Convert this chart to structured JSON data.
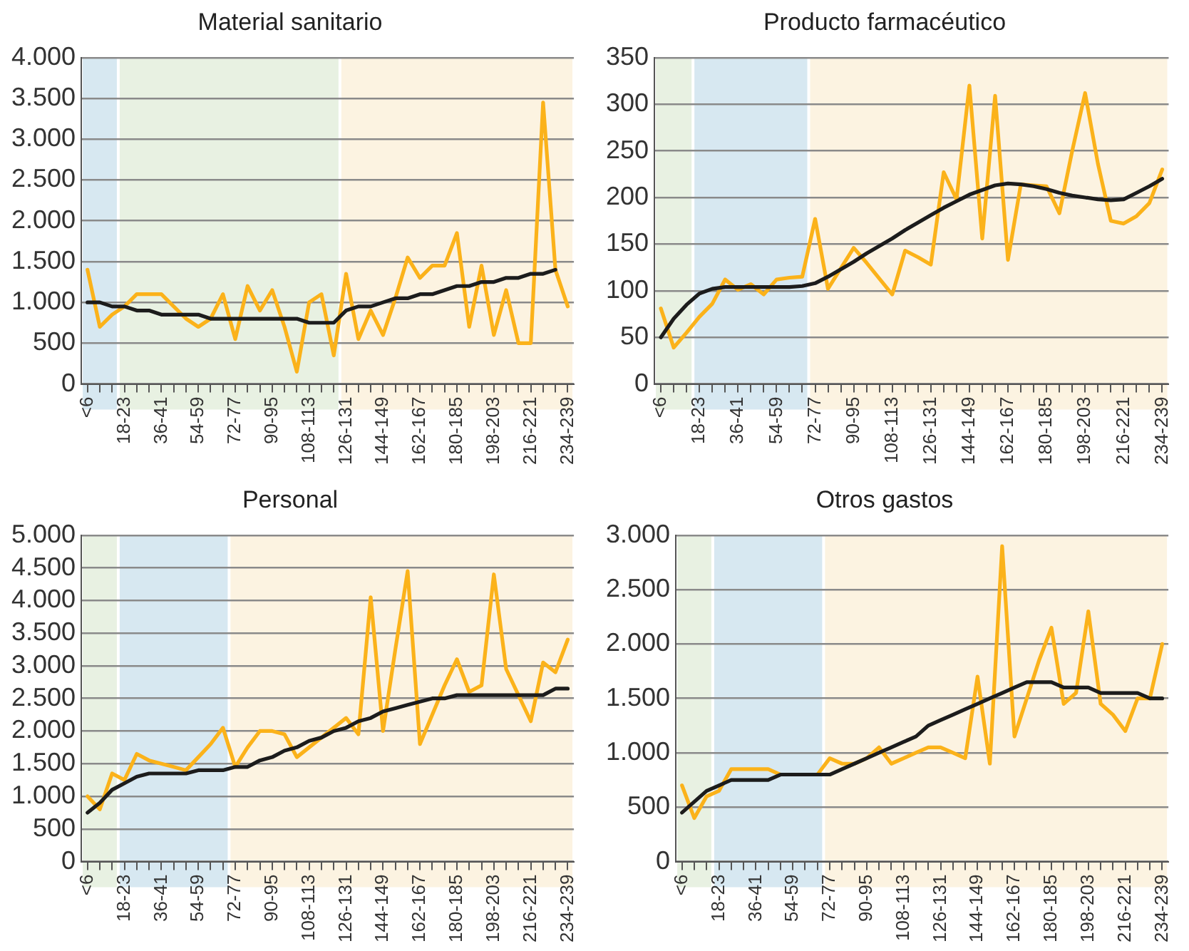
{
  "chart_data": [
    {
      "type": "line",
      "title": "Material sanitario",
      "categories": [
        "<6",
        null,
        null,
        "18-23",
        null,
        null,
        "36-41",
        null,
        null,
        "54-59",
        null,
        null,
        "72-77",
        null,
        null,
        "90-95",
        null,
        null,
        "108-113",
        null,
        null,
        "126-131",
        null,
        null,
        "144-149",
        null,
        null,
        "162-167",
        null,
        null,
        "180-185",
        null,
        null,
        "198-203",
        null,
        null,
        "216-221",
        null,
        null,
        "234-239"
      ],
      "ylim": [
        0,
        4000
      ],
      "yticks": [
        0,
        {
          "value": 500,
          "label": "500"
        },
        {
          "value": 1000,
          "label": "1.000"
        },
        {
          "value": 1500,
          "label": "1.500"
        },
        {
          "value": 2000,
          "label": "2.000"
        },
        {
          "value": 2500,
          "label": "2.500"
        },
        {
          "value": 3000,
          "label": "3.000"
        },
        {
          "value": 3500,
          "label": "3.500"
        },
        {
          "value": 4000,
          "label": "4.000"
        }
      ],
      "grid": "y",
      "marker": "none",
      "bands": [
        {
          "axis": "x",
          "from": "<6",
          "to": "18-23",
          "color": "#d7e8f1"
        },
        {
          "axis": "x",
          "from": "18-23",
          "to": "126-131",
          "color": "#e8f1e2"
        },
        {
          "axis": "x",
          "from": "126-131",
          "to": "234-239",
          "color": "#fcf3e1"
        }
      ],
      "series": [
        {
          "color": "#fbb21a",
          "values": [
            1400,
            700,
            850,
            950,
            1100,
            1100,
            1100,
            950,
            800,
            700,
            800,
            1100,
            550,
            1200,
            900,
            1150,
            700,
            150,
            1000,
            1100,
            350,
            1350,
            550,
            900,
            600,
            1050,
            1550,
            1300,
            1450,
            1450,
            1850,
            700,
            1450,
            600,
            1150,
            500,
            500,
            3450,
            1400,
            950
          ]
        },
        {
          "color": "#1c1c1c",
          "values": [
            1000,
            1000,
            950,
            950,
            900,
            900,
            850,
            850,
            850,
            850,
            800,
            800,
            800,
            800,
            800,
            800,
            800,
            800,
            750,
            750,
            750,
            900,
            950,
            950,
            1000,
            1050,
            1050,
            1100,
            1100,
            1150,
            1200,
            1200,
            1250,
            1250,
            1300,
            1300,
            1350,
            1350,
            1400,
            null
          ]
        }
      ]
    },
    {
      "type": "line",
      "title": "Producto farmacéutico",
      "categories": [
        "<6",
        null,
        null,
        "18-23",
        null,
        null,
        "36-41",
        null,
        null,
        "54-59",
        null,
        null,
        "72-77",
        null,
        null,
        "90-95",
        null,
        null,
        "108-113",
        null,
        null,
        "126-131",
        null,
        null,
        "144-149",
        null,
        null,
        "162-167",
        null,
        null,
        "180-185",
        null,
        null,
        "198-203",
        null,
        null,
        "216-221",
        null,
        null,
        "234-239"
      ],
      "ylim": [
        0,
        350
      ],
      "yticks": [
        0,
        50,
        100,
        150,
        200,
        250,
        300,
        350
      ],
      "grid": "y",
      "marker": "none",
      "bands": [
        {
          "axis": "x",
          "from": "<6",
          "to": "18-23",
          "color": "#e8f1e2"
        },
        {
          "axis": "x",
          "from": "18-23",
          "to": "72-77",
          "color": "#d7e8f1"
        },
        {
          "axis": "x",
          "from": "72-77",
          "to": "234-239",
          "color": "#fcf3e1"
        }
      ],
      "series": [
        {
          "color": "#fbb21a",
          "values": [
            81,
            39,
            55,
            72,
            86,
            112,
            101,
            107,
            96,
            112,
            114,
            115,
            177,
            102,
            124,
            146,
            130,
            113,
            96,
            143,
            136,
            128,
            227,
            198,
            320,
            156,
            309,
            133,
            214,
            213,
            212,
            183,
            250,
            312,
            236,
            175,
            172,
            180,
            194,
            230
          ]
        },
        {
          "color": "#1c1c1c",
          "values": [
            50,
            70,
            85,
            97,
            102,
            104,
            104,
            104,
            104,
            104,
            104,
            105,
            108,
            115,
            123,
            131,
            140,
            148,
            156,
            165,
            173,
            181,
            189,
            196,
            203,
            208,
            213,
            215,
            214,
            212,
            209,
            205,
            202,
            200,
            198,
            197,
            198,
            205,
            212,
            220
          ]
        }
      ]
    },
    {
      "type": "line",
      "title": "Personal",
      "categories": [
        "<6",
        null,
        null,
        "18-23",
        null,
        null,
        "36-41",
        null,
        null,
        "54-59",
        null,
        null,
        "72-77",
        null,
        null,
        "90-95",
        null,
        null,
        "108-113",
        null,
        null,
        "126-131",
        null,
        null,
        "144-149",
        null,
        null,
        "162-167",
        null,
        null,
        "180-185",
        null,
        null,
        "198-203",
        null,
        null,
        "216-221",
        null,
        null,
        "234-239"
      ],
      "ylim": [
        0,
        5000
      ],
      "yticks": [
        0,
        {
          "value": 500,
          "label": "500"
        },
        {
          "value": 1000,
          "label": "1.000"
        },
        {
          "value": 1500,
          "label": "1.500"
        },
        {
          "value": 2000,
          "label": "2.000"
        },
        {
          "value": 2500,
          "label": "2.500"
        },
        {
          "value": 3000,
          "label": "3.000"
        },
        {
          "value": 3500,
          "label": "3.500"
        },
        {
          "value": 4000,
          "label": "4.000"
        },
        {
          "value": 4500,
          "label": "4.500"
        },
        {
          "value": 5000,
          "label": "5.000"
        }
      ],
      "grid": "y",
      "marker": "none",
      "bands": [
        {
          "axis": "x",
          "from": "<6",
          "to": "18-23",
          "color": "#e8f1e2"
        },
        {
          "axis": "x",
          "from": "18-23",
          "to": "72-77",
          "color": "#d7e8f1"
        },
        {
          "axis": "x",
          "from": "72-77",
          "to": "234-239",
          "color": "#fcf3e1"
        }
      ],
      "series": [
        {
          "color": "#fbb21a",
          "values": [
            1000,
            800,
            1350,
            1250,
            1650,
            1550,
            1500,
            1450,
            1400,
            1600,
            1800,
            2050,
            1450,
            1750,
            2000,
            2000,
            1950,
            1600,
            1750,
            1900,
            2050,
            2200,
            1950,
            4050,
            2000,
            3250,
            4450,
            1800,
            2250,
            2700,
            3100,
            2600,
            2700,
            4400,
            2950,
            2550,
            2150,
            3050,
            2900,
            3400
          ]
        },
        {
          "color": "#1c1c1c",
          "values": [
            750,
            900,
            1100,
            1200,
            1300,
            1350,
            1350,
            1350,
            1350,
            1400,
            1400,
            1400,
            1450,
            1450,
            1550,
            1600,
            1700,
            1750,
            1850,
            1900,
            2000,
            2050,
            2150,
            2200,
            2300,
            2350,
            2400,
            2450,
            2500,
            2500,
            2550,
            2550,
            2550,
            2550,
            2550,
            2550,
            2550,
            2550,
            2650,
            2650
          ]
        }
      ]
    },
    {
      "type": "line",
      "title": "Otros gastos",
      "categories": [
        "<6",
        null,
        null,
        "18-23",
        null,
        null,
        "36-41",
        null,
        null,
        "54-59",
        null,
        null,
        "72-77",
        null,
        null,
        "90-95",
        null,
        null,
        "108-113",
        null,
        null,
        "126-131",
        null,
        null,
        "144-149",
        null,
        null,
        "162-167",
        null,
        null,
        "180-185",
        null,
        null,
        "198-203",
        null,
        null,
        "216-221",
        null,
        null,
        "234-239"
      ],
      "ylim": [
        0,
        3000
      ],
      "yticks": [
        0,
        {
          "value": 500,
          "label": "500"
        },
        {
          "value": 1000,
          "label": "1.000"
        },
        {
          "value": 1500,
          "label": "1.500"
        },
        {
          "value": 2000,
          "label": "2.000"
        },
        {
          "value": 2500,
          "label": "2.500"
        },
        {
          "value": 3000,
          "label": "3.000"
        }
      ],
      "grid": "y",
      "marker": "none",
      "bands": [
        {
          "axis": "x",
          "from": "<6",
          "to": "18-23",
          "color": "#e8f1e2"
        },
        {
          "axis": "x",
          "from": "18-23",
          "to": "72-77",
          "color": "#d7e8f1"
        },
        {
          "axis": "x",
          "from": "72-77",
          "to": "234-239",
          "color": "#fcf3e1"
        }
      ],
      "series": [
        {
          "color": "#fbb21a",
          "values": [
            700,
            400,
            600,
            650,
            850,
            850,
            850,
            850,
            800,
            800,
            800,
            800,
            950,
            900,
            900,
            950,
            1050,
            900,
            950,
            1000,
            1050,
            1050,
            1000,
            950,
            1700,
            900,
            2900,
            1150,
            1500,
            1850,
            2150,
            1450,
            1550,
            2300,
            1450,
            1350,
            1200,
            1500,
            1500,
            2000
          ]
        },
        {
          "color": "#1c1c1c",
          "values": [
            450,
            550,
            650,
            700,
            750,
            750,
            750,
            750,
            800,
            800,
            800,
            800,
            800,
            850,
            900,
            950,
            1000,
            1050,
            1100,
            1150,
            1250,
            1300,
            1350,
            1400,
            1450,
            1500,
            1550,
            1600,
            1650,
            1650,
            1650,
            1600,
            1600,
            1600,
            1550,
            1550,
            1550,
            1550,
            1500,
            1500
          ]
        }
      ]
    }
  ]
}
